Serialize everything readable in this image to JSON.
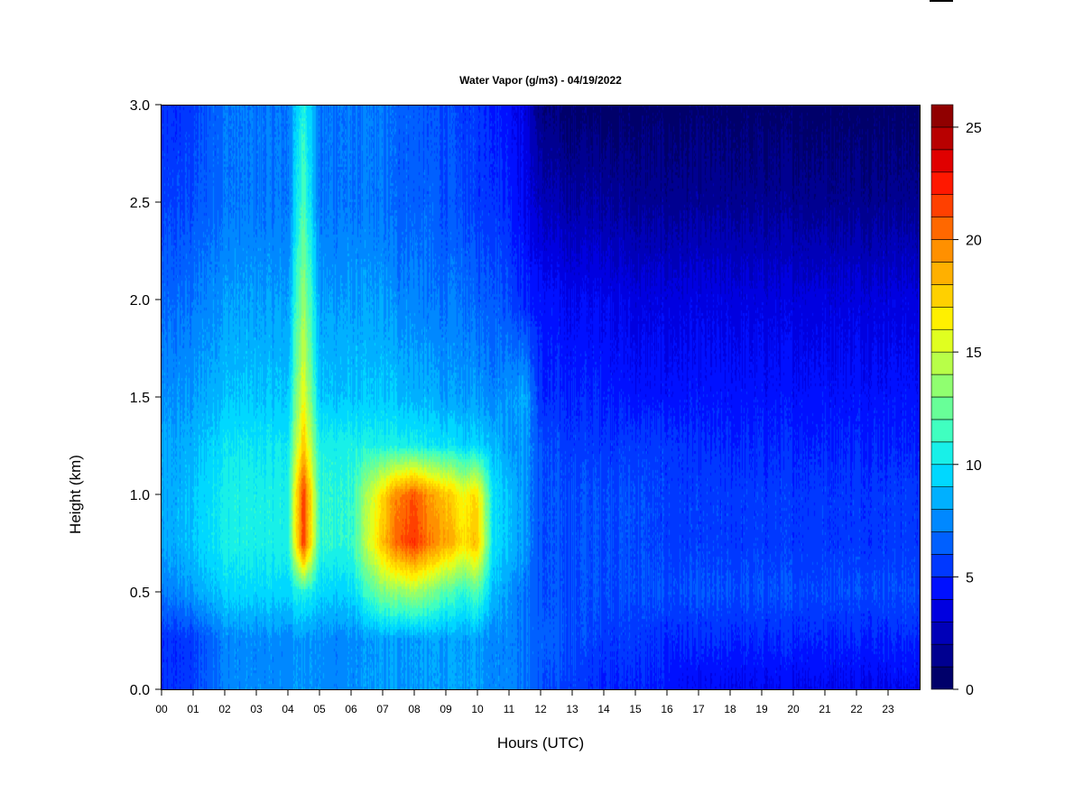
{
  "chart_data": {
    "type": "heatmap",
    "title": "Water Vapor (g/m3) - 04/19/2022",
    "xlabel": "Hours (UTC)",
    "ylabel": "Height (km)",
    "xlim": [
      0,
      24
    ],
    "ylim": [
      0,
      3.0
    ],
    "x_ticks": [
      "00",
      "01",
      "02",
      "03",
      "04",
      "05",
      "06",
      "07",
      "08",
      "09",
      "10",
      "11",
      "12",
      "13",
      "14",
      "15",
      "16",
      "17",
      "18",
      "19",
      "20",
      "21",
      "22",
      "23"
    ],
    "y_ticks": [
      "0.0",
      "0.5",
      "1.0",
      "1.5",
      "2.0",
      "2.5",
      "3.0"
    ],
    "colorbar": {
      "range": [
        0,
        26
      ],
      "ticks": [
        "0",
        "5",
        "10",
        "15",
        "20",
        "25"
      ],
      "levels": 25,
      "colors": [
        "#00006a",
        "#000090",
        "#0000b8",
        "#0000e0",
        "#0010ff",
        "#0038ff",
        "#0060ff",
        "#0088ff",
        "#00b0ff",
        "#00d8ff",
        "#18f0e8",
        "#40ffc0",
        "#68ff98",
        "#90ff70",
        "#b8ff48",
        "#e0ff20",
        "#fff000",
        "#ffd000",
        "#ffb000",
        "#ff9000",
        "#ff6800",
        "#ff4000",
        "#ff1800",
        "#e00000",
        "#b80000",
        "#900000"
      ]
    },
    "grid": false,
    "x_hours": [
      0,
      1,
      2,
      3,
      4,
      4.5,
      5,
      6,
      7,
      7.5,
      8,
      8.5,
      9,
      9.5,
      10,
      10.5,
      11,
      11.5,
      12,
      13,
      14,
      15,
      16,
      17,
      18,
      19,
      20,
      21,
      22,
      23,
      24
    ],
    "y_heights_km": [
      0,
      0.25,
      0.5,
      0.75,
      1.0,
      1.25,
      1.5,
      2.0,
      2.5,
      3.0
    ],
    "z_values_gm3": [
      [
        5,
        5.5,
        7.5,
        7.5,
        7.5,
        8,
        7.5,
        7.5,
        8,
        8,
        8,
        8,
        8,
        8,
        8,
        7.5,
        7.5,
        7,
        6,
        5.5,
        5,
        5,
        4.5,
        4,
        4,
        4,
        4,
        4,
        4,
        4,
        4
      ],
      [
        5,
        5.5,
        7.5,
        7.5,
        7.5,
        8,
        7.5,
        7.5,
        8,
        8,
        8,
        8,
        8,
        8,
        8,
        7.5,
        7.5,
        7,
        6.5,
        6,
        5.5,
        5.5,
        5,
        5,
        5,
        5,
        5,
        5,
        5,
        5,
        5
      ],
      [
        7,
        8,
        9.5,
        9.5,
        9.5,
        11,
        9.5,
        9.5,
        13,
        13.5,
        14,
        13,
        12,
        11,
        12,
        9,
        8,
        7,
        6,
        6,
        6,
        6,
        6,
        6,
        6,
        6,
        6,
        6,
        6,
        6,
        6
      ],
      [
        8,
        9,
        10.5,
        10.5,
        10.5,
        22,
        11,
        11,
        18,
        21,
        22,
        20,
        19,
        17,
        18,
        10,
        9,
        8,
        6,
        6,
        6,
        6,
        5.5,
        5.5,
        5.5,
        5.5,
        5.5,
        5.5,
        5.5,
        5.5,
        5.5
      ],
      [
        8,
        9,
        10.5,
        10.5,
        10.5,
        22,
        11,
        11,
        17,
        20,
        21,
        19,
        18,
        16,
        17,
        10,
        9,
        8,
        6,
        6,
        6,
        6,
        5.5,
        5.5,
        5.5,
        5.5,
        5.5,
        5.5,
        5.5,
        5.5,
        5.5
      ],
      [
        8,
        8.5,
        10,
        10,
        10,
        18,
        10.5,
        10.5,
        10.5,
        10.5,
        10.5,
        10,
        10,
        9.5,
        9.5,
        9,
        8,
        8,
        6,
        5.5,
        5.5,
        5.5,
        5.5,
        5,
        5,
        5,
        5,
        5,
        5,
        5,
        5
      ],
      [
        7.5,
        8,
        9,
        9,
        9,
        16,
        9,
        9,
        9,
        9,
        8.5,
        8.5,
        8,
        8,
        8,
        7.5,
        8,
        8.5,
        5,
        5,
        5,
        4.5,
        4.5,
        4.5,
        4.5,
        4.5,
        4.5,
        4.5,
        4.5,
        4.5,
        4.5
      ],
      [
        6.5,
        7,
        8,
        8,
        8,
        14,
        8,
        8,
        8,
        7.5,
        7.5,
        7,
        7,
        7,
        6.5,
        6.5,
        6,
        5,
        4.5,
        4,
        4,
        3.5,
        3.5,
        3.5,
        3.5,
        3.5,
        3.5,
        3.5,
        3.5,
        3.5,
        3.5
      ],
      [
        5.5,
        6,
        7,
        7,
        7,
        12,
        7,
        7,
        7,
        6.5,
        6.5,
        6.5,
        6,
        6,
        5.5,
        5.5,
        5,
        4,
        2.5,
        2,
        2,
        1.5,
        1.5,
        1.5,
        1.5,
        1.5,
        1.5,
        1.5,
        1.5,
        1.5,
        1.5
      ],
      [
        5,
        5.5,
        7,
        7,
        7,
        11,
        7,
        7,
        7,
        6.5,
        6.5,
        6,
        6,
        5.5,
        5.5,
        5,
        4.5,
        3.5,
        1,
        0.5,
        0.5,
        0.5,
        0.5,
        0.5,
        0.5,
        0.5,
        0.5,
        0.5,
        0.5,
        0.5,
        0.5
      ]
    ]
  }
}
